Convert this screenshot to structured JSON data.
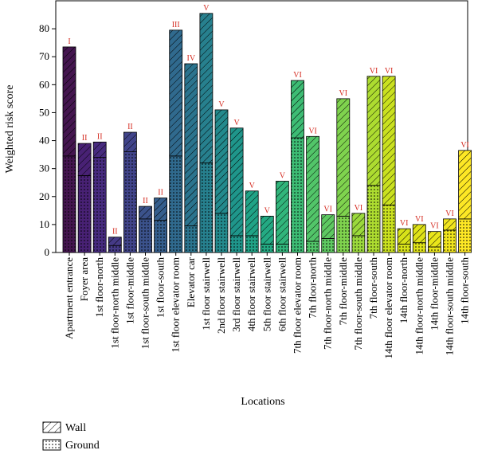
{
  "chart_data": {
    "type": "bar",
    "stacked": true,
    "ylabel": "Weighted risk score",
    "xlabel": "Locations",
    "ylim": [
      0,
      90
    ],
    "yticks": [
      0,
      10,
      20,
      30,
      40,
      50,
      60,
      70,
      80
    ],
    "categories": [
      "Apartment entrance",
      "Foyer area",
      "1st floor-north",
      "1st floor-north middle",
      "1st floor-middle",
      "1st floor-south middle",
      "1st floor-south",
      "1st floor elevator room",
      "Elevator car",
      "1st floor stairwell",
      "2nd floor stairwell",
      "3rd floor stairwell",
      "4th floor stairwell",
      "5th floor stairwell",
      "6th floor stairwell",
      "7th floor elevator room",
      "7th floor-north",
      "7th floor-north middle",
      "7th floor-middle",
      "7th floor-south middle",
      "7th floor-south",
      "14th floor elevator room",
      "14th floor-north",
      "14th floor-north middle",
      "14th floor-middle",
      "14th floor-south middle",
      "14th floor-south"
    ],
    "series": [
      {
        "name": "Ground",
        "values": [
          34.5,
          27.5,
          34,
          2.5,
          36,
          12,
          11.5,
          34.5,
          9.5,
          32,
          14,
          6,
          6,
          3,
          3,
          41,
          4,
          5,
          13,
          6,
          24,
          17,
          3,
          3.5,
          2,
          8,
          12
        ]
      },
      {
        "name": "Wall",
        "values": [
          39,
          11.5,
          5.5,
          3,
          7,
          4.5,
          8,
          45,
          58,
          53.5,
          37,
          38.5,
          16,
          10,
          22.5,
          20.5,
          37.5,
          8.5,
          42,
          8,
          39,
          46,
          5.5,
          6.5,
          5.5,
          4,
          24.5
        ]
      }
    ],
    "totals": [
      73.5,
      39,
      39.5,
      5.5,
      43,
      16.5,
      19.5,
      79.5,
      67.5,
      85.5,
      51,
      44.5,
      22,
      13,
      25.5,
      61.5,
      41.5,
      13.5,
      55,
      14,
      63,
      63,
      8.5,
      10,
      7.5,
      12,
      36.5
    ],
    "class_labels": [
      "I",
      "II",
      "II",
      "II",
      "II",
      "II",
      "II",
      "III",
      "IV",
      "V",
      "V",
      "V",
      "V",
      "V",
      "V",
      "VI",
      "VI",
      "VI",
      "VI",
      "VI",
      "VI",
      "VI",
      "VI",
      "VI",
      "VI",
      "VI",
      "VI"
    ],
    "colors": [
      "#44154f",
      "#482174",
      "#472b7f",
      "#453a87",
      "#41448a",
      "#3b528b",
      "#355e8d",
      "#306a8e",
      "#2b748e",
      "#27808e",
      "#238a8d",
      "#1f968b",
      "#20a386",
      "#24aa83",
      "#31b57b",
      "#3dbc74",
      "#52c569",
      "#5ec962",
      "#7fd34e",
      "#9bd93c",
      "#addc30",
      "#cae11f",
      "#d7e219",
      "#e0e318",
      "#e9e51a",
      "#f1e51d",
      "#fde725"
    ],
    "class_label_color": "#d42a1f",
    "legend": [
      {
        "label": "Wall",
        "pattern": "hatch"
      },
      {
        "label": "Ground",
        "pattern": "dots"
      }
    ],
    "legend_position": "bottom-left",
    "grid": false
  }
}
